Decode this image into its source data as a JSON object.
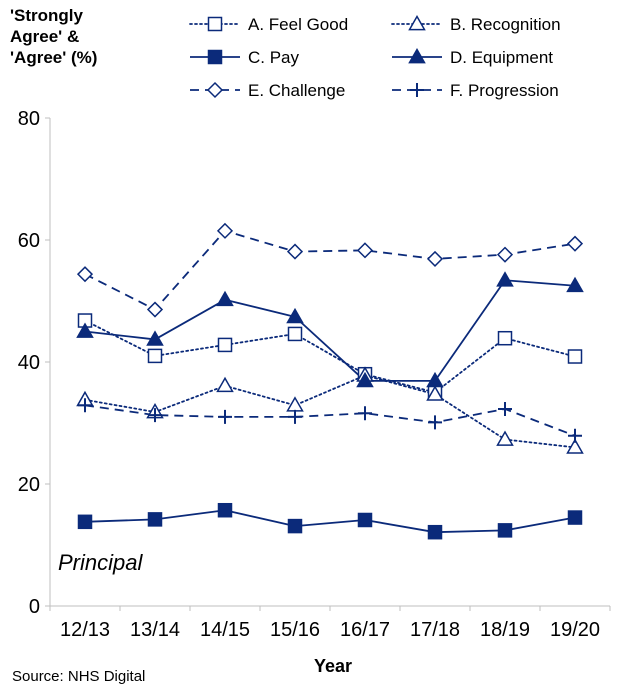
{
  "chart_data": {
    "type": "line",
    "ylabel": [
      "'Strongly",
      "Agree' &",
      "'Agree' (%)"
    ],
    "xlabel": "Year",
    "categories": [
      "12/13",
      "13/14",
      "14/15",
      "15/16",
      "16/17",
      "17/18",
      "18/19",
      "19/20"
    ],
    "ylim": [
      0,
      80
    ],
    "yticks": [
      0,
      20,
      40,
      60,
      80
    ],
    "grid": false,
    "legend_position": "top",
    "annotation": "Principal",
    "source": "Source: NHS Digital",
    "series": [
      {
        "name": "A. Feel Good",
        "marker": "square-open",
        "line": "dotted",
        "values": [
          46.8,
          41.0,
          42.8,
          44.6,
          38.0,
          35.0,
          43.9,
          40.9
        ]
      },
      {
        "name": "B. Recognition",
        "marker": "triangle-open",
        "line": "dotted",
        "values": [
          33.8,
          31.8,
          36.1,
          32.9,
          37.8,
          34.7,
          27.3,
          26.0
        ]
      },
      {
        "name": "C. Pay",
        "marker": "square-filled",
        "line": "solid",
        "values": [
          13.8,
          14.2,
          15.7,
          13.1,
          14.1,
          12.1,
          12.4,
          14.5
        ]
      },
      {
        "name": "D. Equipment",
        "marker": "triangle-filled",
        "line": "solid",
        "values": [
          45.0,
          43.7,
          50.2,
          47.4,
          36.9,
          36.9,
          53.4,
          52.5
        ]
      },
      {
        "name": "E. Challenge",
        "marker": "diamond-open",
        "line": "dashed",
        "values": [
          54.4,
          48.6,
          61.5,
          58.1,
          58.3,
          56.9,
          57.6,
          59.4
        ]
      },
      {
        "name": "F. Progression",
        "marker": "plus",
        "line": "dashed",
        "values": [
          32.9,
          31.3,
          31.0,
          31.0,
          31.6,
          30.1,
          32.3,
          27.9
        ]
      }
    ],
    "colors": {
      "series": "#0b2a7a",
      "axis": "#bfbfbf"
    }
  }
}
